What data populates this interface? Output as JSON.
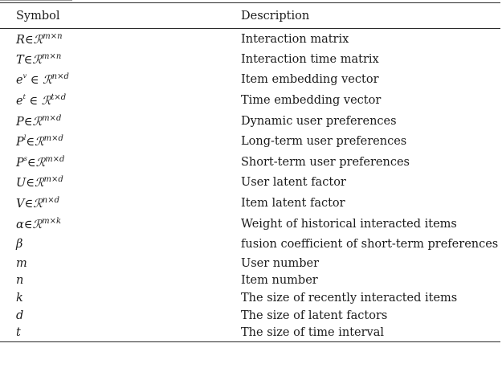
{
  "table": {
    "headers": [
      "Symbol",
      "Description"
    ],
    "rows": [
      {
        "base": "R",
        "base_sup": "",
        "op": "∈",
        "set": "ℛ",
        "dims": "m×n",
        "description": "Interaction matrix"
      },
      {
        "base": "T",
        "base_sup": "",
        "op": "∈",
        "set": "ℛ",
        "dims": "m×n",
        "description": "Interaction time matrix"
      },
      {
        "base": "e",
        "base_sup": "v",
        "op": " ∈ ",
        "set": "ℛ",
        "dims": "n×d",
        "description": "Item embedding vector"
      },
      {
        "base": "e",
        "base_sup": "t",
        "op": " ∈ ",
        "set": "ℛ",
        "dims": "t×d",
        "description": "Time embedding vector"
      },
      {
        "base": "P",
        "base_sup": "",
        "op": "∈",
        "set": "ℛ",
        "dims": "m×d",
        "description": "Dynamic user preferences"
      },
      {
        "base": "P",
        "base_sup": "l",
        "op": "∈",
        "set": "ℛ",
        "dims": "m×d",
        "description": "Long-term user preferences"
      },
      {
        "base": "P",
        "base_sup": "s",
        "op": "∈",
        "set": "ℛ",
        "dims": "m×d",
        "description": "Short-term user preferences"
      },
      {
        "base": "U",
        "base_sup": "",
        "op": "∈",
        "set": "ℛ",
        "dims": "m×d",
        "description": "User latent factor"
      },
      {
        "base": "V",
        "base_sup": "",
        "op": "∈",
        "set": "ℛ",
        "dims": "n×d",
        "description": "Item latent factor"
      },
      {
        "base": "α",
        "base_sup": "",
        "op": "∈",
        "set": "ℛ",
        "dims": "m×k",
        "description": "Weight of historical interacted items"
      },
      {
        "base": "β",
        "base_sup": "",
        "op": "",
        "set": "",
        "dims": "",
        "description": "fusion coefficient of short-term preferences"
      },
      {
        "base": "m",
        "base_sup": "",
        "op": "",
        "set": "",
        "dims": "",
        "description": "User number"
      },
      {
        "base": "n",
        "base_sup": "",
        "op": "",
        "set": "",
        "dims": "",
        "description": "Item number"
      },
      {
        "base": "k",
        "base_sup": "",
        "op": "",
        "set": "",
        "dims": "",
        "description": "The size of recently interacted items"
      },
      {
        "base": "d",
        "base_sup": "",
        "op": "",
        "set": "",
        "dims": "",
        "description": "The size of latent factors"
      },
      {
        "base": "t",
        "base_sup": "",
        "op": "",
        "set": "",
        "dims": "",
        "description": "The size of time interval"
      }
    ]
  }
}
